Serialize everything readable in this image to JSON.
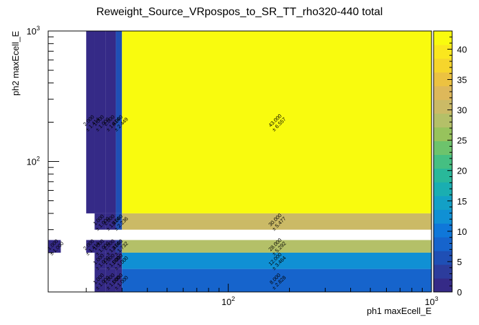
{
  "chart_data": {
    "type": "heatmap",
    "title": "Reweight_Source_VRpospos_to_SR_TT_rho320-440 total",
    "xlabel": "ph1 maxEcell_E",
    "ylabel": "ph2 maxEcell_E",
    "x_scale": "log",
    "y_scale": "log",
    "xlim": [
      13,
      1000
    ],
    "ylim": [
      10,
      1000
    ],
    "x_ticks": [
      {
        "value": 100,
        "base": "10",
        "exp": "2"
      },
      {
        "value": 1000,
        "base": "10",
        "exp": "3"
      }
    ],
    "y_ticks": [
      {
        "value": 100,
        "base": "10",
        "exp": "2"
      },
      {
        "value": 1000,
        "base": "10",
        "exp": "3"
      }
    ],
    "colorbar": {
      "min": 0,
      "max": 43,
      "ticks": [
        "0",
        "5",
        "10",
        "15",
        "20",
        "25",
        "30",
        "35",
        "40"
      ],
      "palette": [
        "#352a87",
        "#2c3c9c",
        "#1f4fb5",
        "#1664cc",
        "#0f77d9",
        "#1090d4",
        "#13a0c6",
        "#1aaeb1",
        "#29b89a",
        "#45bf82",
        "#6dc36c",
        "#97c35c",
        "#b4c068",
        "#cbba66",
        "#deb85a",
        "#ecc241",
        "#f6d52c",
        "#fae71e",
        "#f9fb0e"
      ]
    },
    "cells": [
      {
        "x0": 13,
        "x1": 15,
        "y0": 20,
        "y1": 25,
        "value": 1,
        "label": "1.000",
        "error": "± 1.000"
      },
      {
        "x0": 20,
        "x1": 22,
        "y0": 40,
        "y1": 1000,
        "value": 2,
        "label": "2.000",
        "error": "± 1.414"
      },
      {
        "x0": 22,
        "x1": 25,
        "y0": 40,
        "y1": 1000,
        "value": 1,
        "label": "1.000",
        "error": "± 1.000"
      },
      {
        "x0": 25,
        "x1": 28,
        "y0": 40,
        "y1": 1000,
        "value": 2,
        "label": "2.000",
        "error": "± 1.414"
      },
      {
        "x0": 28,
        "x1": 30,
        "y0": 40,
        "y1": 1000,
        "value": 6,
        "label": "6.000",
        "error": "± 2.449"
      },
      {
        "x0": 30,
        "x1": 1000,
        "y0": 40,
        "y1": 1000,
        "value": 43,
        "label": "43.000",
        "error": "± 6.557"
      },
      {
        "x0": 22,
        "x1": 25,
        "y0": 30,
        "y1": 40,
        "value": 1,
        "label": "1.000",
        "error": "± 1.000"
      },
      {
        "x0": 25,
        "x1": 28,
        "y0": 30,
        "y1": 40,
        "value": 2,
        "label": "2.000",
        "error": "± 1.414"
      },
      {
        "x0": 28,
        "x1": 30,
        "y0": 30,
        "y1": 40,
        "value": 5,
        "label": "5.000",
        "error": "± 2.236"
      },
      {
        "x0": 30,
        "x1": 1000,
        "y0": 30,
        "y1": 40,
        "value": 30,
        "label": "30.000",
        "error": "± 5.477"
      },
      {
        "x0": 20,
        "x1": 22,
        "y0": 20,
        "y1": 25,
        "value": 2,
        "label": "2.000",
        "error": "± 1.414"
      },
      {
        "x0": 22,
        "x1": 25,
        "y0": 20,
        "y1": 25,
        "value": 1,
        "label": "1.000",
        "error": "± 1.000"
      },
      {
        "x0": 25,
        "x1": 28,
        "y0": 20,
        "y1": 25,
        "value": 2,
        "label": "2.000",
        "error": "± 1.414"
      },
      {
        "x0": 28,
        "x1": 30,
        "y0": 20,
        "y1": 25,
        "value": 3,
        "label": "3.000",
        "error": "± 1.732"
      },
      {
        "x0": 30,
        "x1": 1000,
        "y0": 20,
        "y1": 25,
        "value": 28,
        "label": "28.000",
        "error": "± 5.292"
      },
      {
        "x0": 22,
        "x1": 25,
        "y0": 15,
        "y1": 20,
        "value": 1,
        "label": "1.000",
        "error": "± 1.000"
      },
      {
        "x0": 25,
        "x1": 28,
        "y0": 15,
        "y1": 20,
        "value": 1,
        "label": "1.000",
        "error": "± 1.000"
      },
      {
        "x0": 28,
        "x1": 30,
        "y0": 15,
        "y1": 20,
        "value": 1,
        "label": "1.000",
        "error": "± 1.000"
      },
      {
        "x0": 30,
        "x1": 1000,
        "y0": 15,
        "y1": 20,
        "value": 12,
        "label": "12.000",
        "error": "± 3.464"
      },
      {
        "x0": 22,
        "x1": 25,
        "y0": 10,
        "y1": 15,
        "value": 1,
        "label": "1.000",
        "error": "± 1.000"
      },
      {
        "x0": 25,
        "x1": 28,
        "y0": 10,
        "y1": 15,
        "value": 1,
        "label": "1.000",
        "error": "± 1.000"
      },
      {
        "x0": 28,
        "x1": 30,
        "y0": 10,
        "y1": 15,
        "value": 1,
        "label": "1.000",
        "error": "± 1.000"
      },
      {
        "x0": 30,
        "x1": 1000,
        "y0": 10,
        "y1": 15,
        "value": 8,
        "label": "8.000",
        "error": "± 2.828"
      }
    ]
  }
}
